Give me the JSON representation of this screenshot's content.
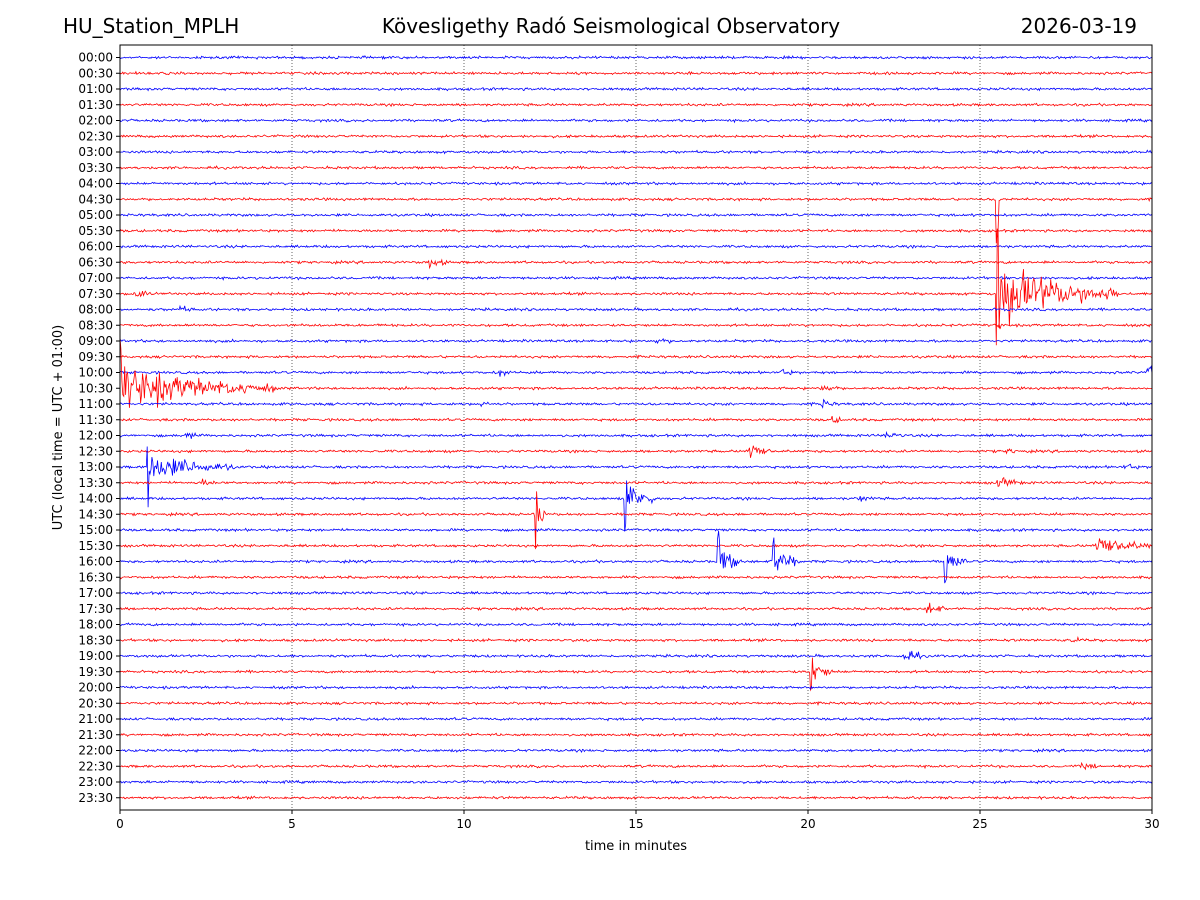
{
  "header": {
    "station": "HU_Station_MPLH",
    "title": "Kövesligethy Radó Seismological Observatory",
    "date": "2026-03-19"
  },
  "chart_data": {
    "type": "line",
    "title": "Kövesligethy Radó Seismological Observatory",
    "xlabel": "time in minutes",
    "ylabel": "UTC (local time = UTC + 01:00)",
    "xlim": [
      0,
      30
    ],
    "xticks": [
      0,
      5,
      10,
      15,
      20,
      25,
      30
    ],
    "gridlines_x": [
      5,
      10,
      15,
      20,
      25
    ],
    "colors": [
      "#0000ff",
      "#ff0000"
    ],
    "traces": [
      {
        "label": "00:00",
        "events": []
      },
      {
        "label": "00:30",
        "events": []
      },
      {
        "label": "01:00",
        "events": []
      },
      {
        "label": "01:30",
        "events": []
      },
      {
        "label": "02:00",
        "events": []
      },
      {
        "label": "02:30",
        "events": []
      },
      {
        "label": "03:00",
        "events": []
      },
      {
        "label": "03:30",
        "events": []
      },
      {
        "label": "04:00",
        "events": []
      },
      {
        "label": "04:30",
        "events": [
          {
            "t": 25.5,
            "amp": 3.0,
            "dur": 0.1
          }
        ]
      },
      {
        "label": "05:00",
        "events": []
      },
      {
        "label": "05:30",
        "events": []
      },
      {
        "label": "06:00",
        "events": []
      },
      {
        "label": "06:30",
        "events": [
          {
            "t": 9.0,
            "amp": 0.6,
            "dur": 0.5
          }
        ]
      },
      {
        "label": "07:00",
        "events": []
      },
      {
        "label": "07:30",
        "events": [
          {
            "t": 25.5,
            "amp": 4.0,
            "dur": 3.5
          },
          {
            "t": 0.5,
            "amp": 0.5,
            "dur": 0.4
          }
        ]
      },
      {
        "label": "08:00",
        "events": [
          {
            "t": 1.7,
            "amp": 0.4,
            "dur": 0.5
          }
        ]
      },
      {
        "label": "08:30",
        "events": [
          {
            "t": 25.5,
            "amp": 1.0,
            "dur": 0.1
          }
        ]
      },
      {
        "label": "09:00",
        "events": [
          {
            "t": 15.6,
            "amp": 0.4,
            "dur": 0.4
          }
        ]
      },
      {
        "label": "09:30",
        "events": []
      },
      {
        "label": "10:00",
        "events": [
          {
            "t": 11.0,
            "amp": 0.5,
            "dur": 0.4
          },
          {
            "t": 19.2,
            "amp": 0.4,
            "dur": 0.4
          },
          {
            "t": 29.9,
            "amp": 0.8,
            "dur": 0.2
          }
        ]
      },
      {
        "label": "10:30",
        "events": [
          {
            "t": 0.0,
            "amp": 2.8,
            "dur": 4.5
          },
          {
            "t": 20.4,
            "amp": 0.5,
            "dur": 0.5
          }
        ]
      },
      {
        "label": "11:00",
        "events": [
          {
            "t": 10.5,
            "amp": 0.3,
            "dur": 0.4
          },
          {
            "t": 20.4,
            "amp": 0.5,
            "dur": 0.4
          }
        ]
      },
      {
        "label": "11:30",
        "events": [
          {
            "t": 20.7,
            "amp": 0.4,
            "dur": 0.4
          }
        ]
      },
      {
        "label": "12:00",
        "events": [
          {
            "t": 1.9,
            "amp": 0.6,
            "dur": 0.3
          },
          {
            "t": 22.3,
            "amp": 0.5,
            "dur": 0.5
          }
        ]
      },
      {
        "label": "12:30",
        "events": [
          {
            "t": 18.3,
            "amp": 1.2,
            "dur": 0.6
          },
          {
            "t": 25.8,
            "amp": 0.3,
            "dur": 0.4
          }
        ]
      },
      {
        "label": "13:00",
        "events": [
          {
            "t": 0.8,
            "amp": 1.8,
            "dur": 2.5
          },
          {
            "t": 29.2,
            "amp": 0.5,
            "dur": 0.4
          }
        ]
      },
      {
        "label": "13:30",
        "events": [
          {
            "t": 2.4,
            "amp": 0.4,
            "dur": 0.4
          },
          {
            "t": 25.5,
            "amp": 0.6,
            "dur": 0.8
          }
        ]
      },
      {
        "label": "14:00",
        "events": [
          {
            "t": 14.7,
            "amp": 2.2,
            "dur": 0.9
          },
          {
            "t": 21.5,
            "amp": 0.4,
            "dur": 0.4
          }
        ]
      },
      {
        "label": "14:30",
        "events": [
          {
            "t": 12.1,
            "amp": 2.3,
            "dur": 0.3
          }
        ]
      },
      {
        "label": "15:00",
        "events": []
      },
      {
        "label": "15:30",
        "events": [
          {
            "t": 28.4,
            "amp": 1.3,
            "dur": 1.6
          }
        ]
      },
      {
        "label": "16:00",
        "events": [
          {
            "t": 17.4,
            "amp": 1.8,
            "dur": 0.7
          },
          {
            "t": 19.0,
            "amp": 1.8,
            "dur": 0.8
          },
          {
            "t": 24.0,
            "amp": 1.6,
            "dur": 0.6
          }
        ]
      },
      {
        "label": "16:30",
        "events": []
      },
      {
        "label": "17:00",
        "events": []
      },
      {
        "label": "17:30",
        "events": [
          {
            "t": 23.5,
            "amp": 0.9,
            "dur": 0.5
          }
        ]
      },
      {
        "label": "18:00",
        "events": []
      },
      {
        "label": "18:30",
        "events": [
          {
            "t": 27.7,
            "amp": 0.3,
            "dur": 0.3
          }
        ]
      },
      {
        "label": "19:00",
        "events": [
          {
            "t": 22.8,
            "amp": 0.8,
            "dur": 0.6
          }
        ]
      },
      {
        "label": "19:30",
        "events": [
          {
            "t": 20.1,
            "amp": 1.5,
            "dur": 0.6
          }
        ]
      },
      {
        "label": "20:00",
        "events": []
      },
      {
        "label": "20:30",
        "events": []
      },
      {
        "label": "21:00",
        "events": []
      },
      {
        "label": "21:30",
        "events": []
      },
      {
        "label": "22:00",
        "events": []
      },
      {
        "label": "22:30",
        "events": [
          {
            "t": 28.0,
            "amp": 0.4,
            "dur": 0.5
          }
        ]
      },
      {
        "label": "23:00",
        "events": []
      },
      {
        "label": "23:30",
        "events": []
      }
    ]
  }
}
